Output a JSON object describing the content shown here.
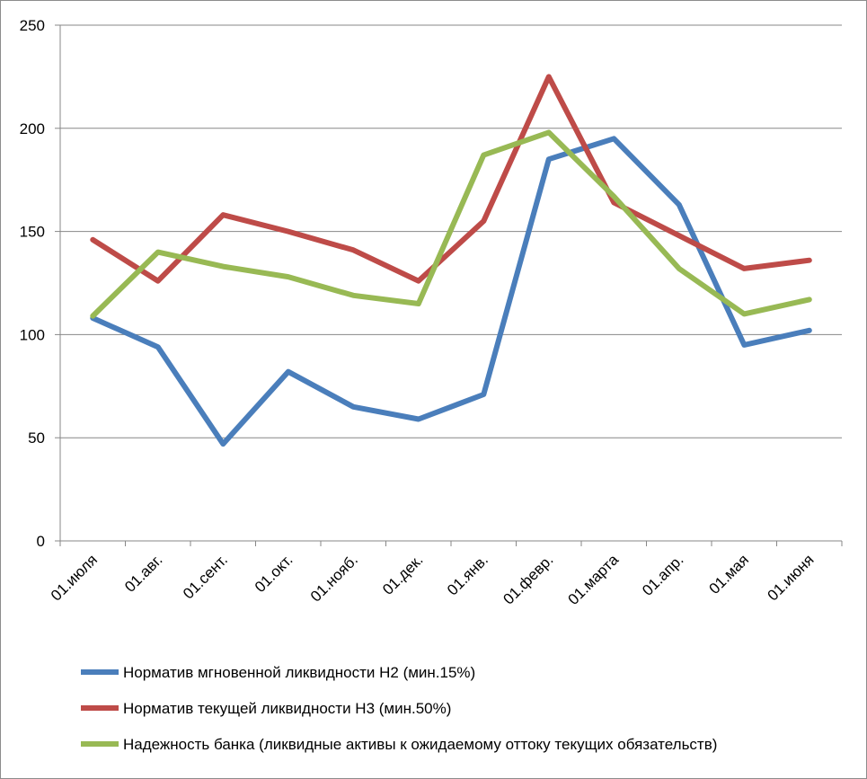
{
  "chart_data": {
    "type": "line",
    "title": "",
    "xlabel": "",
    "ylabel": "",
    "ylim": [
      0,
      250
    ],
    "yticks": [
      0,
      50,
      100,
      150,
      200,
      250
    ],
    "grid": true,
    "legend_position": "bottom",
    "categories": [
      "01.июля",
      "01.авг.",
      "01.сент.",
      "01.окт.",
      "01.нояб.",
      "01.дек.",
      "01.янв.",
      "01.февр.",
      "01.марта",
      "01.апр.",
      "01.мая",
      "01.июня"
    ],
    "series": [
      {
        "name": "Норматив мгновенной ликвидности Н2 (мин.15%)",
        "color": "#4a7ebb",
        "values": [
          108,
          94,
          47,
          82,
          65,
          59,
          71,
          185,
          195,
          163,
          95,
          102
        ]
      },
      {
        "name": "Норматив текущей ликвидности Н3 (мин.50%)",
        "color": "#be4b48",
        "values": [
          146,
          126,
          158,
          150,
          141,
          126,
          155,
          225,
          164,
          148,
          132,
          136
        ]
      },
      {
        "name": "Надежность банка (ликвидные активы к ожидаемому оттоку текущих обязательств)",
        "color": "#98b954",
        "values": [
          109,
          140,
          133,
          128,
          119,
          115,
          187,
          198,
          167,
          132,
          110,
          117
        ]
      }
    ]
  }
}
